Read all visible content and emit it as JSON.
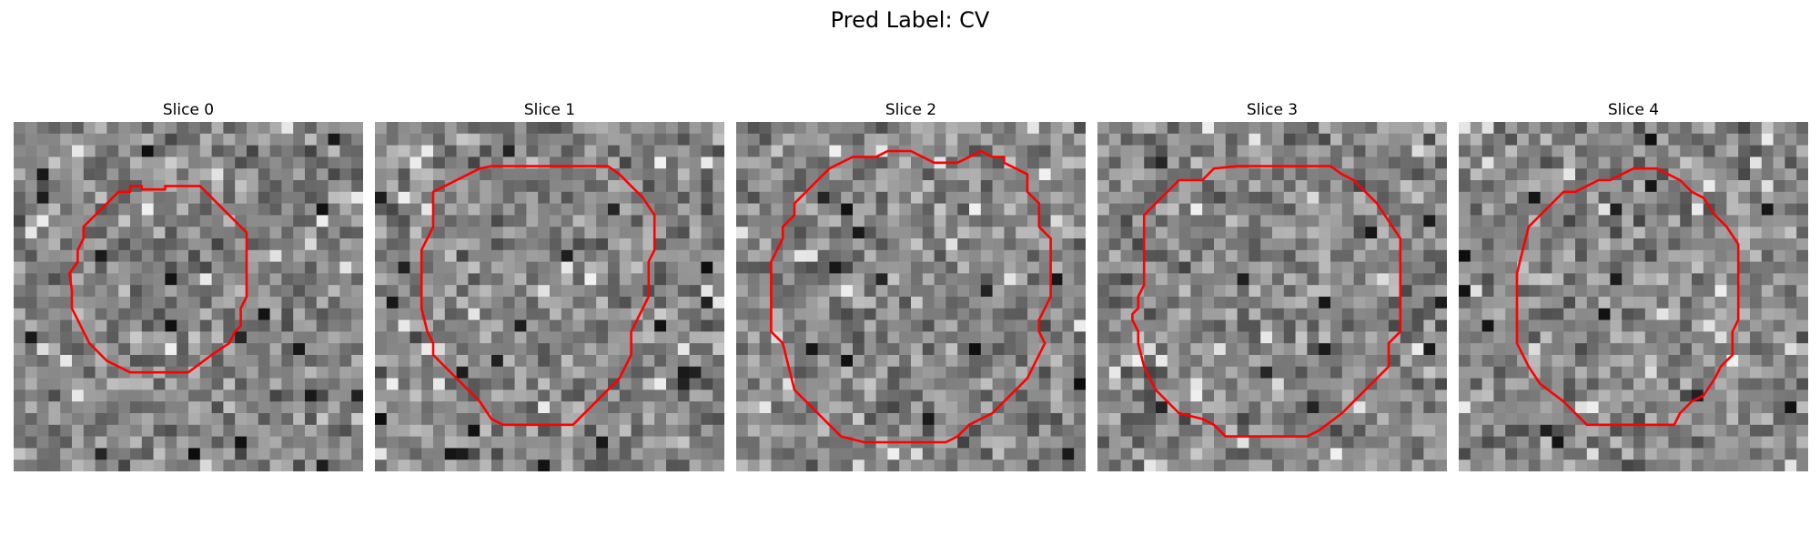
{
  "figure": {
    "title": "Pred Label: CV"
  },
  "slices": [
    {
      "title": "Slice 0"
    },
    {
      "title": "Slice 1"
    },
    {
      "title": "Slice 2"
    },
    {
      "title": "Slice 3"
    },
    {
      "title": "Slice 4"
    }
  ],
  "contour_color": "#ff0000",
  "image_colormap": "gray"
}
